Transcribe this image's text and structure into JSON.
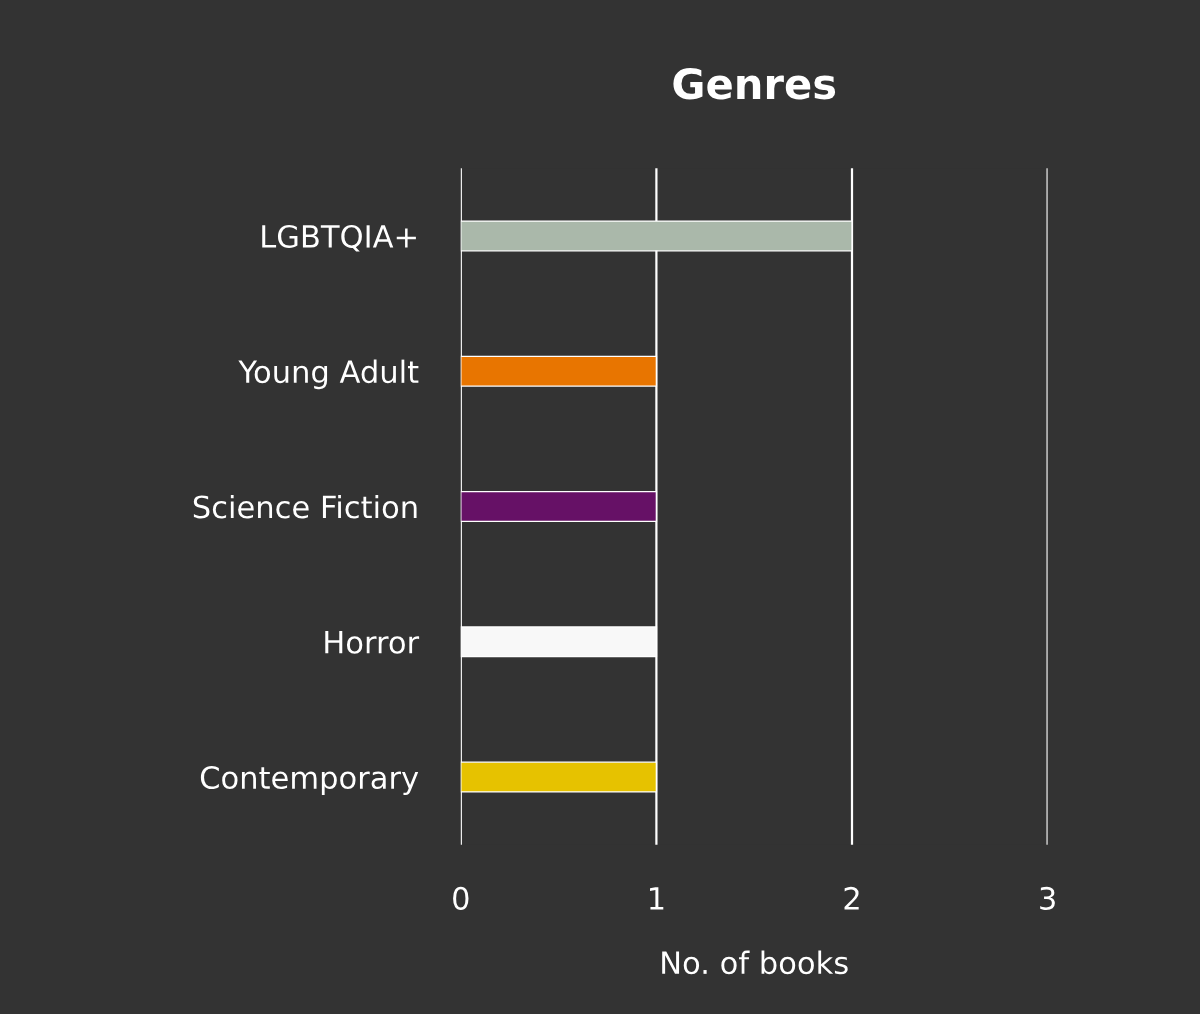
{
  "chart_data": {
    "type": "bar",
    "orientation": "horizontal",
    "title": "Genres",
    "xlabel": "No. of books",
    "categories": [
      "LGBTQIA+",
      "Young Adult",
      "Science Fiction",
      "Horror",
      "Contemporary"
    ],
    "values": [
      2,
      1,
      1,
      1,
      1
    ],
    "colors": [
      "#aab8aa",
      "#e87500",
      "#661166",
      "#f8f8f8",
      "#e6c200"
    ],
    "xlim": [
      0,
      3
    ],
    "xticks": [
      0,
      1,
      2,
      3
    ],
    "grid": "x"
  }
}
